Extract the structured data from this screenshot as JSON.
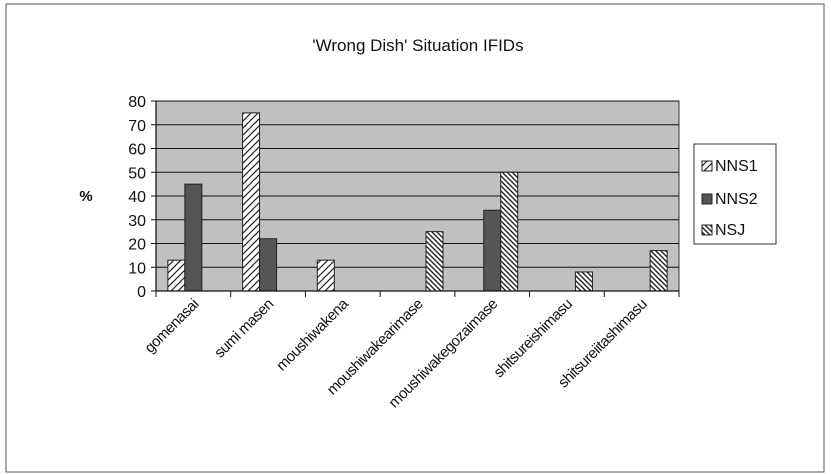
{
  "chart_data": {
    "type": "bar",
    "title": "'Wrong Dish' Situation IFIDs",
    "xlabel": "",
    "ylabel": "%",
    "ylim": [
      0,
      80
    ],
    "yticks": [
      0,
      10,
      20,
      30,
      40,
      50,
      60,
      70,
      80
    ],
    "grid": true,
    "legend_position": "right",
    "categories": [
      "gomenasai",
      "sumimasen",
      "moushiwakenai",
      "moushiwakearimasen",
      "moushiwakegozaimasen",
      "shitsureishimasu",
      "shitsureiitashimasu"
    ],
    "category_labels": [
      "gomenasai",
      "sumi masen",
      "moushiwakena",
      "moushiwakearimase",
      "moushiwakegozaimase",
      "shitsureishimasu",
      "shitsureiitashimasu"
    ],
    "series": [
      {
        "name": "NNS1",
        "values": [
          13,
          75,
          13,
          0,
          0,
          0,
          0
        ],
        "pattern": "forward-hatch",
        "color": "#ffffff"
      },
      {
        "name": "NNS2",
        "values": [
          45,
          22,
          0,
          0,
          34,
          0,
          0
        ],
        "pattern": "solid",
        "color": "#555555"
      },
      {
        "name": "NSJ",
        "values": [
          0,
          0,
          0,
          25,
          50,
          8,
          17
        ],
        "pattern": "back-hatch",
        "color": "#ffffff"
      }
    ],
    "plot_background": "#c0c0c0"
  }
}
